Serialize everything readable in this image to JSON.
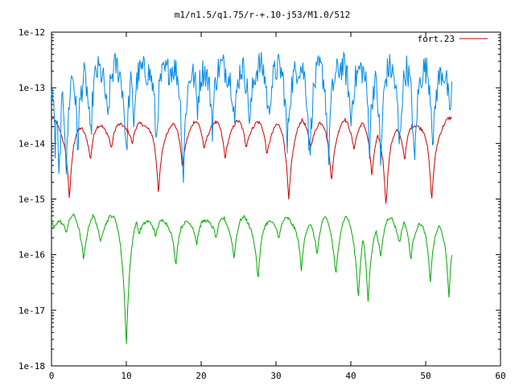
{
  "chart_data": {
    "type": "line",
    "title": "m1/n1.5/q1.75/r-+.10-j53/M1.0/512",
    "xlabel": "",
    "ylabel": "",
    "xlim": [
      0,
      60
    ],
    "ylim": [
      1e-18,
      1e-12
    ],
    "yscale": "log",
    "grid": false,
    "legend_position": "top-right",
    "x_ticks": [
      "0",
      "10",
      "20",
      "30",
      "40",
      "50",
      "60"
    ],
    "y_ticks": [
      "1e-18",
      "1e-17",
      "1e-16",
      "1e-15",
      "1e-14",
      "1e-13",
      "1e-12"
    ],
    "series": [
      {
        "name": "fort.23",
        "color": "#cc0000",
        "legend": true,
        "shape": "scalloped",
        "x_range": [
          0,
          53.5
        ],
        "peak": 3e-14,
        "dips": [
          {
            "x": 2.4,
            "y": 1e-15
          },
          {
            "x": 5.2,
            "y": 5e-15
          },
          {
            "x": 8.0,
            "y": 8e-15
          },
          {
            "x": 10.8,
            "y": 1e-14
          },
          {
            "x": 14.3,
            "y": 1.2e-15
          },
          {
            "x": 17.5,
            "y": 4e-15
          },
          {
            "x": 20.4,
            "y": 9e-15
          },
          {
            "x": 23.2,
            "y": 6e-15
          },
          {
            "x": 26.0,
            "y": 1e-14
          },
          {
            "x": 28.8,
            "y": 7e-15
          },
          {
            "x": 31.7,
            "y": 1.1e-15
          },
          {
            "x": 34.6,
            "y": 1e-14
          },
          {
            "x": 37.4,
            "y": 2.5e-15
          },
          {
            "x": 40.4,
            "y": 1e-14
          },
          {
            "x": 42.8,
            "y": 3e-15
          },
          {
            "x": 44.7,
            "y": 7e-16
          },
          {
            "x": 47.2,
            "y": 5e-15
          },
          {
            "x": 50.8,
            "y": 9e-16
          }
        ]
      },
      {
        "name": "",
        "color": "#008ae6",
        "legend": false,
        "shape": "noisy",
        "x_range": [
          0,
          53.5
        ],
        "peak": 3.5e-13,
        "dips": [
          {
            "x": 0.5,
            "y": 1e-14
          },
          {
            "x": 1.0,
            "y": 2.5e-15
          },
          {
            "x": 2.0,
            "y": 4e-15
          },
          {
            "x": 3.5,
            "y": 1e-14
          },
          {
            "x": 5.2,
            "y": 1e-14
          },
          {
            "x": 7.5,
            "y": 3e-14
          },
          {
            "x": 10.0,
            "y": 8e-15
          },
          {
            "x": 11.0,
            "y": 3e-14
          },
          {
            "x": 14.0,
            "y": 1e-14
          },
          {
            "x": 17.6,
            "y": 2.5e-15
          },
          {
            "x": 19.5,
            "y": 5e-14
          },
          {
            "x": 21.5,
            "y": 3e-14
          },
          {
            "x": 24.5,
            "y": 3e-14
          },
          {
            "x": 26.5,
            "y": 3e-14
          },
          {
            "x": 29.0,
            "y": 4e-14
          },
          {
            "x": 31.5,
            "y": 1e-14
          },
          {
            "x": 34.5,
            "y": 6e-15
          },
          {
            "x": 37.0,
            "y": 5e-15
          },
          {
            "x": 40.0,
            "y": 3e-14
          },
          {
            "x": 42.5,
            "y": 1e-14
          },
          {
            "x": 44.0,
            "y": 5e-15
          },
          {
            "x": 46.5,
            "y": 1e-14
          },
          {
            "x": 48.5,
            "y": 4e-15
          },
          {
            "x": 51.0,
            "y": 1e-14
          },
          {
            "x": 53.2,
            "y": 3e-14
          }
        ]
      },
      {
        "name": "",
        "color": "#00aa00",
        "legend": false,
        "shape": "scalloped",
        "x_range": [
          0,
          53.5
        ],
        "peak": 6e-16,
        "dips": [
          {
            "x": 0.3,
            "y": 3e-16
          },
          {
            "x": 2.0,
            "y": 3e-16
          },
          {
            "x": 4.3,
            "y": 1e-16
          },
          {
            "x": 6.5,
            "y": 2e-16
          },
          {
            "x": 10.0,
            "y": 3e-18
          },
          {
            "x": 11.7,
            "y": 2.5e-16
          },
          {
            "x": 13.9,
            "y": 2e-16
          },
          {
            "x": 16.6,
            "y": 6e-17
          },
          {
            "x": 19.4,
            "y": 1.5e-16
          },
          {
            "x": 22.0,
            "y": 2e-16
          },
          {
            "x": 24.4,
            "y": 1e-16
          },
          {
            "x": 27.6,
            "y": 3.5e-17
          },
          {
            "x": 30.4,
            "y": 2e-16
          },
          {
            "x": 33.4,
            "y": 5e-17
          },
          {
            "x": 35.5,
            "y": 1.2e-16
          },
          {
            "x": 38.0,
            "y": 5e-17
          },
          {
            "x": 41.0,
            "y": 2e-17
          },
          {
            "x": 42.3,
            "y": 1.4e-17
          },
          {
            "x": 44.0,
            "y": 1e-16
          },
          {
            "x": 46.5,
            "y": 2e-16
          },
          {
            "x": 48.0,
            "y": 8e-17
          },
          {
            "x": 50.6,
            "y": 3e-17
          },
          {
            "x": 53.1,
            "y": 1.7e-17
          }
        ]
      }
    ]
  }
}
